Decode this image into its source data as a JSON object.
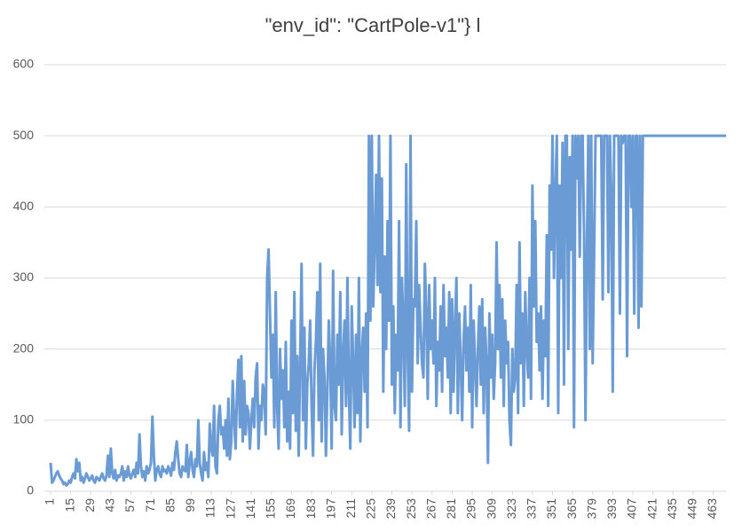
{
  "chart_data": {
    "type": "line",
    "title": "\"env_id\": \"CartPole-v1\"} l",
    "color": "#6a9bd5",
    "grid": true,
    "xlim": [
      1,
      472
    ],
    "xticks": [
      1,
      15,
      29,
      43,
      57,
      71,
      85,
      99,
      113,
      127,
      141,
      155,
      169,
      183,
      197,
      211,
      225,
      239,
      253,
      267,
      281,
      295,
      309,
      323,
      337,
      351,
      365,
      379,
      393,
      407,
      421,
      435,
      449,
      463
    ],
    "ylim": [
      0,
      600
    ],
    "yticks": [
      0,
      100,
      200,
      300,
      400,
      500,
      600
    ],
    "x": [
      1,
      2,
      3,
      4,
      5,
      6,
      7,
      8,
      9,
      10,
      11,
      12,
      13,
      14,
      15,
      16,
      17,
      18,
      19,
      20,
      21,
      22,
      23,
      24,
      25,
      26,
      27,
      28,
      29,
      30,
      31,
      32,
      33,
      34,
      35,
      36,
      37,
      38,
      39,
      40,
      41,
      42,
      43,
      44,
      45,
      46,
      47,
      48,
      49,
      50,
      51,
      52,
      53,
      54,
      55,
      56,
      57,
      58,
      59,
      60,
      61,
      62,
      63,
      64,
      65,
      66,
      67,
      68,
      69,
      70,
      71,
      72,
      73,
      74,
      75,
      76,
      77,
      78,
      79,
      80,
      81,
      82,
      83,
      84,
      85,
      86,
      87,
      88,
      89,
      90,
      91,
      92,
      93,
      94,
      95,
      96,
      97,
      98,
      99,
      100,
      101,
      102,
      103,
      104,
      105,
      106,
      107,
      108,
      109,
      110,
      111,
      112,
      113,
      114,
      115,
      116,
      117,
      118,
      119,
      120,
      121,
      122,
      123,
      124,
      125,
      126,
      127,
      128,
      129,
      130,
      131,
      132,
      133,
      134,
      135,
      136,
      137,
      138,
      139,
      140,
      141,
      142,
      143,
      144,
      145,
      146,
      147,
      148,
      149,
      150,
      151,
      152,
      153,
      154,
      155,
      156,
      157,
      158,
      159,
      160,
      161,
      162,
      163,
      164,
      165,
      166,
      167,
      168,
      169,
      170,
      171,
      172,
      173,
      174,
      175,
      176,
      177,
      178,
      179,
      180,
      181,
      182,
      183,
      184,
      185,
      186,
      187,
      188,
      189,
      190,
      191,
      192,
      193,
      194,
      195,
      196,
      197,
      198,
      199,
      200,
      201,
      202,
      203,
      204,
      205,
      206,
      207,
      208,
      209,
      210,
      211,
      212,
      213,
      214,
      215,
      216,
      217,
      218,
      219,
      220,
      221,
      222,
      223,
      224,
      225,
      226,
      227,
      228,
      229,
      230,
      231,
      232,
      233,
      234,
      235,
      236,
      237,
      238,
      239,
      240,
      241,
      242,
      243,
      244,
      245,
      246,
      247,
      248,
      249,
      250,
      251,
      252,
      253,
      254,
      255,
      256,
      257,
      258,
      259,
      260,
      261,
      262,
      263,
      264,
      265,
      266,
      267,
      268,
      269,
      270,
      271,
      272,
      273,
      274,
      275,
      276,
      277,
      278,
      279,
      280,
      281,
      282,
      283,
      284,
      285,
      286,
      287,
      288,
      289,
      290,
      291,
      292,
      293,
      294,
      295,
      296,
      297,
      298,
      299,
      300,
      301,
      302,
      303,
      304,
      305,
      306,
      307,
      308,
      309,
      310,
      311,
      312,
      313,
      314,
      315,
      316,
      317,
      318,
      319,
      320,
      321,
      322,
      323,
      324,
      325,
      326,
      327,
      328,
      329,
      330,
      331,
      332,
      333,
      334,
      335,
      336,
      337,
      338,
      339,
      340,
      341,
      342,
      343,
      344,
      345,
      346,
      347,
      348,
      349,
      350,
      351,
      352,
      353,
      354,
      355,
      356,
      357,
      358,
      359,
      360,
      361,
      362,
      363,
      364,
      365,
      366,
      367,
      368,
      369,
      370,
      371,
      372,
      373,
      374,
      375,
      376,
      377,
      378,
      379,
      380,
      381,
      382,
      383,
      384,
      385,
      386,
      387,
      388,
      389,
      390,
      391,
      392,
      393,
      394,
      395,
      396,
      397,
      398,
      399,
      400,
      401,
      402,
      403,
      404,
      405,
      406,
      407,
      408,
      409,
      410,
      411,
      412,
      413,
      414,
      415,
      416,
      417,
      418,
      419,
      420,
      421,
      422,
      423,
      424,
      425,
      426,
      427,
      428,
      429,
      430,
      431,
      432,
      433,
      434,
      435,
      436,
      437,
      438,
      439,
      440,
      441,
      442,
      443,
      444,
      445,
      446,
      447,
      448,
      449,
      450,
      451,
      452,
      453,
      454,
      455,
      456,
      457,
      458,
      459,
      460,
      461,
      462,
      463,
      464,
      465,
      466,
      467,
      468,
      469,
      470,
      471,
      472
    ],
    "values": [
      40,
      12,
      15,
      20,
      25,
      28,
      22,
      18,
      15,
      10,
      12,
      8,
      10,
      15,
      12,
      20,
      25,
      18,
      45,
      28,
      40,
      15,
      20,
      12,
      18,
      25,
      20,
      15,
      18,
      22,
      15,
      12,
      20,
      18,
      15,
      20,
      25,
      18,
      15,
      22,
      50,
      20,
      60,
      25,
      18,
      30,
      15,
      22,
      20,
      25,
      35,
      15,
      28,
      20,
      35,
      22,
      18,
      25,
      30,
      20,
      40,
      25,
      80,
      35,
      20,
      28,
      15,
      35,
      25,
      30,
      40,
      105,
      50,
      15,
      30,
      35,
      25,
      20,
      35,
      28,
      30,
      25,
      35,
      30,
      22,
      40,
      30,
      55,
      70,
      45,
      25,
      20,
      35,
      30,
      28,
      65,
      20,
      40,
      55,
      30,
      20,
      45,
      35,
      100,
      40,
      25,
      15,
      55,
      30,
      40,
      20,
      95,
      60,
      50,
      120,
      35,
      25,
      100,
      120,
      80,
      90,
      60,
      100,
      50,
      130,
      45,
      70,
      155,
      100,
      60,
      140,
      185,
      90,
      190,
      70,
      155,
      80,
      120,
      110,
      60,
      100,
      130,
      90,
      160,
      180,
      60,
      120,
      100,
      150,
      140,
      80,
      300,
      340,
      250,
      160,
      220,
      90,
      280,
      120,
      60,
      200,
      130,
      170,
      90,
      210,
      70,
      140,
      60,
      240,
      110,
      280,
      85,
      190,
      50,
      180,
      320,
      100,
      230,
      60,
      150,
      180,
      240,
      120,
      50,
      170,
      210,
      280,
      100,
      320,
      70,
      200,
      160,
      50,
      140,
      240,
      180,
      60,
      310,
      120,
      100,
      220,
      150,
      280,
      80,
      190,
      240,
      120,
      300,
      140,
      60,
      260,
      180,
      90,
      220,
      110,
      300,
      70,
      190,
      230,
      140,
      250,
      90,
      500,
      240,
      500,
      260,
      350,
      445,
      290,
      500,
      280,
      440,
      140,
      330,
      200,
      380,
      240,
      500,
      150,
      260,
      110,
      220,
      170,
      380,
      90,
      300,
      230,
      120,
      460,
      200,
      85,
      500,
      140,
      270,
      260,
      380,
      180,
      290,
      230,
      180,
      160,
      320,
      250,
      130,
      290,
      200,
      240,
      180,
      300,
      120,
      210,
      170,
      260,
      140,
      290,
      190,
      230,
      160,
      280,
      110,
      270,
      140,
      230,
      300,
      110,
      250,
      180,
      100,
      210,
      260,
      170,
      230,
      140,
      290,
      90,
      240,
      180,
      120,
      200,
      260,
      150,
      270,
      110,
      230,
      180,
      40,
      250,
      160,
      220,
      130,
      180,
      350,
      200,
      290,
      160,
      270,
      120,
      240,
      180,
      210,
      100,
      65,
      200,
      140,
      160,
      290,
      110,
      350,
      180,
      250,
      120,
      280,
      200,
      160,
      300,
      130,
      430,
      260,
      380,
      210,
      250,
      170,
      260,
      130,
      240,
      190,
      360,
      120,
      430,
      340,
      500,
      300,
      420,
      500,
      110,
      430,
      300,
      490,
      150,
      500,
      500,
      200,
      470,
      340,
      500,
      90,
      500,
      440,
      500,
      330,
      500,
      500,
      360,
      100,
      350,
      500,
      200,
      500,
      180,
      330,
      500,
      500,
      500,
      500,
      500,
      270,
      500,
      500,
      500,
      280,
      500,
      420,
      140,
      500,
      500,
      500,
      500,
      250,
      500,
      490,
      500,
      500,
      190,
      500,
      500,
      400,
      500,
      250,
      500,
      500,
      230,
      500,
      260,
      500,
      500,
      500,
      500,
      500,
      500,
      500,
      500,
      500,
      500,
      500,
      500,
      500,
      500,
      500,
      500,
      500,
      500,
      500,
      500,
      500,
      500,
      500,
      500,
      500,
      500,
      500,
      500,
      500,
      500,
      500,
      500,
      500,
      500,
      500,
      500,
      500,
      500,
      500,
      500,
      500,
      500,
      500,
      500,
      500,
      500,
      500,
      500,
      500,
      500,
      500,
      500,
      500,
      500,
      500,
      500,
      500,
      500,
      500
    ]
  }
}
